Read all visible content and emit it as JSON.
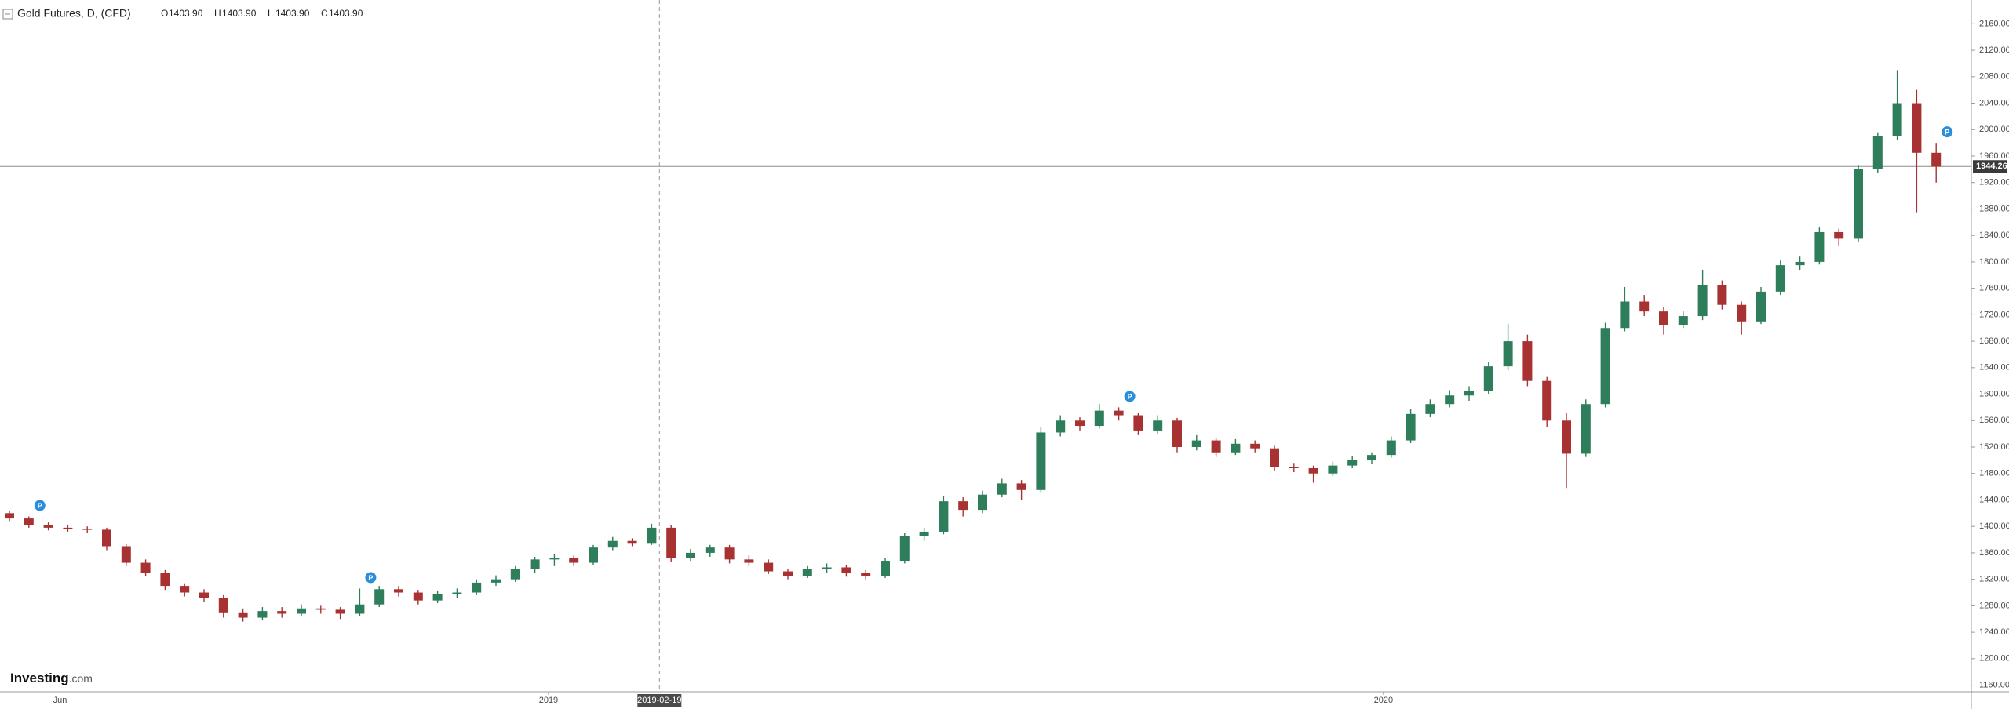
{
  "chart_data": {
    "type": "candlestick",
    "title": "Gold Futures, D, (CFD)",
    "ohlc_legend": [
      {
        "key": "O",
        "value": "1403.90"
      },
      {
        "key": "H",
        "value": "1403.90"
      },
      {
        "key": "L",
        "value": "1403.90"
      },
      {
        "key": "C",
        "value": "1403.90"
      }
    ],
    "logo": {
      "brand": "Investing",
      "suffix": ".com"
    },
    "up_color": "#2e7d5b",
    "down_color": "#a83232",
    "last_price": 1944.26,
    "ylim": [
      1150,
      2196
    ],
    "yticks": [
      {
        "value": 1160,
        "label": "1160.00"
      },
      {
        "value": 1200,
        "label": "1200.00"
      },
      {
        "value": 1240,
        "label": "1240.00"
      },
      {
        "value": 1280,
        "label": "1280.00"
      },
      {
        "value": 1320,
        "label": "1320.00"
      },
      {
        "value": 1360,
        "label": "1360.00"
      },
      {
        "value": 1400,
        "label": "1400.00"
      },
      {
        "value": 1440,
        "label": "1440.00"
      },
      {
        "value": 1480,
        "label": "1480.00"
      },
      {
        "value": 1520,
        "label": "1520.00"
      },
      {
        "value": 1560,
        "label": "1560.00"
      },
      {
        "value": 1600,
        "label": "1600.00"
      },
      {
        "value": 1640,
        "label": "1640.00"
      },
      {
        "value": 1680,
        "label": "1680.00"
      },
      {
        "value": 1720,
        "label": "1720.00"
      },
      {
        "value": 1760,
        "label": "1760.00"
      },
      {
        "value": 1800,
        "label": "1800.00"
      },
      {
        "value": 1840,
        "label": "1840.00"
      },
      {
        "value": 1880,
        "label": "1880.00"
      },
      {
        "value": 1920,
        "label": "1920.00"
      },
      {
        "value": 1960,
        "label": "1960.00"
      },
      {
        "value": 2000,
        "label": "2000.00"
      },
      {
        "value": 2040,
        "label": "2040.00"
      },
      {
        "value": 2080,
        "label": "2080.00"
      },
      {
        "value": 2120,
        "label": "2120.00"
      },
      {
        "value": 2160,
        "label": "2160.00"
      }
    ],
    "xticks": [
      {
        "value": 2.6,
        "label": "Jun"
      },
      {
        "value": 27.7,
        "label": "2019"
      },
      {
        "value": 33.4,
        "label": "2019-02-19"
      },
      {
        "value": 70.6,
        "label": "2020"
      }
    ],
    "crosshair_xtick": 2,
    "events": [
      {
        "candle": 1,
        "label": "P"
      },
      {
        "candle": 18,
        "label": "P"
      },
      {
        "candle": 57,
        "label": "P"
      },
      {
        "candle": 99,
        "label": "P"
      }
    ],
    "open": [
      1420,
      1412,
      1402,
      1398,
      1396,
      1395,
      1370,
      1345,
      1330,
      1310,
      1300,
      1292,
      1270,
      1262,
      1272,
      1268,
      1276,
      1274,
      1268,
      1282,
      1305,
      1300,
      1288,
      1298,
      1300,
      1315,
      1320,
      1335,
      1350,
      1352,
      1345,
      1368,
      1378,
      1375,
      1398,
      1352,
      1360,
      1368,
      1350,
      1345,
      1332,
      1325,
      1335,
      1338,
      1330,
      1325,
      1348,
      1385,
      1392,
      1438,
      1425,
      1448,
      1465,
      1455,
      1542,
      1560,
      1552,
      1575,
      1568,
      1545,
      1560,
      1520,
      1530,
      1512,
      1525,
      1518,
      1490,
      1488,
      1480,
      1492,
      1500,
      1508,
      1530,
      1570,
      1585,
      1598,
      1605,
      1642,
      1680,
      1620,
      1560,
      1510,
      1585,
      1700,
      1740,
      1725,
      1705,
      1718,
      1765,
      1735,
      1710,
      1755,
      1795,
      1800,
      1845,
      1835,
      1940,
      1990,
      2040,
      1965
    ],
    "high": [
      1424,
      1415,
      1406,
      1402,
      1400,
      1398,
      1374,
      1350,
      1334,
      1314,
      1305,
      1296,
      1276,
      1278,
      1278,
      1282,
      1280,
      1278,
      1306,
      1310,
      1310,
      1304,
      1302,
      1306,
      1320,
      1326,
      1340,
      1354,
      1358,
      1356,
      1372,
      1384,
      1382,
      1404,
      1402,
      1366,
      1372,
      1372,
      1356,
      1350,
      1336,
      1340,
      1344,
      1342,
      1334,
      1352,
      1390,
      1398,
      1446,
      1444,
      1454,
      1472,
      1470,
      1550,
      1568,
      1565,
      1585,
      1580,
      1572,
      1568,
      1564,
      1538,
      1534,
      1532,
      1530,
      1522,
      1496,
      1492,
      1498,
      1506,
      1512,
      1536,
      1578,
      1592,
      1606,
      1612,
      1648,
      1706,
      1690,
      1626,
      1572,
      1592,
      1708,
      1762,
      1750,
      1732,
      1725,
      1788,
      1772,
      1740,
      1762,
      1802,
      1808,
      1852,
      1850,
      1946,
      1996,
      2090,
      2060,
      1980
    ],
    "low": [
      1408,
      1398,
      1394,
      1392,
      1390,
      1364,
      1340,
      1325,
      1304,
      1294,
      1286,
      1262,
      1256,
      1258,
      1262,
      1264,
      1268,
      1260,
      1264,
      1278,
      1294,
      1282,
      1284,
      1292,
      1296,
      1310,
      1316,
      1330,
      1340,
      1340,
      1342,
      1364,
      1370,
      1372,
      1346,
      1348,
      1354,
      1344,
      1340,
      1328,
      1320,
      1322,
      1330,
      1324,
      1320,
      1322,
      1344,
      1378,
      1388,
      1415,
      1420,
      1444,
      1440,
      1452,
      1536,
      1545,
      1548,
      1560,
      1538,
      1540,
      1512,
      1515,
      1505,
      1508,
      1512,
      1484,
      1482,
      1466,
      1476,
      1488,
      1494,
      1504,
      1526,
      1565,
      1580,
      1590,
      1600,
      1636,
      1612,
      1550,
      1458,
      1505,
      1580,
      1695,
      1718,
      1690,
      1700,
      1712,
      1728,
      1690,
      1706,
      1750,
      1788,
      1796,
      1824,
      1830,
      1934,
      1984,
      1875,
      1920
    ],
    "close": [
      1412,
      1402,
      1398,
      1396,
      1395,
      1370,
      1345,
      1330,
      1310,
      1300,
      1292,
      1270,
      1262,
      1272,
      1268,
      1276,
      1274,
      1268,
      1282,
      1305,
      1300,
      1288,
      1298,
      1300,
      1315,
      1320,
      1335,
      1350,
      1352,
      1345,
      1368,
      1378,
      1375,
      1398,
      1352,
      1360,
      1368,
      1350,
      1345,
      1332,
      1325,
      1335,
      1338,
      1330,
      1325,
      1348,
      1385,
      1392,
      1438,
      1425,
      1448,
      1465,
      1455,
      1542,
      1560,
      1552,
      1575,
      1568,
      1545,
      1560,
      1520,
      1530,
      1512,
      1525,
      1518,
      1490,
      1488,
      1480,
      1492,
      1500,
      1508,
      1530,
      1570,
      1585,
      1598,
      1605,
      1642,
      1680,
      1620,
      1560,
      1510,
      1585,
      1700,
      1740,
      1725,
      1705,
      1718,
      1765,
      1735,
      1710,
      1755,
      1795,
      1800,
      1845,
      1835,
      1940,
      1990,
      2040,
      1965,
      1944
    ]
  }
}
